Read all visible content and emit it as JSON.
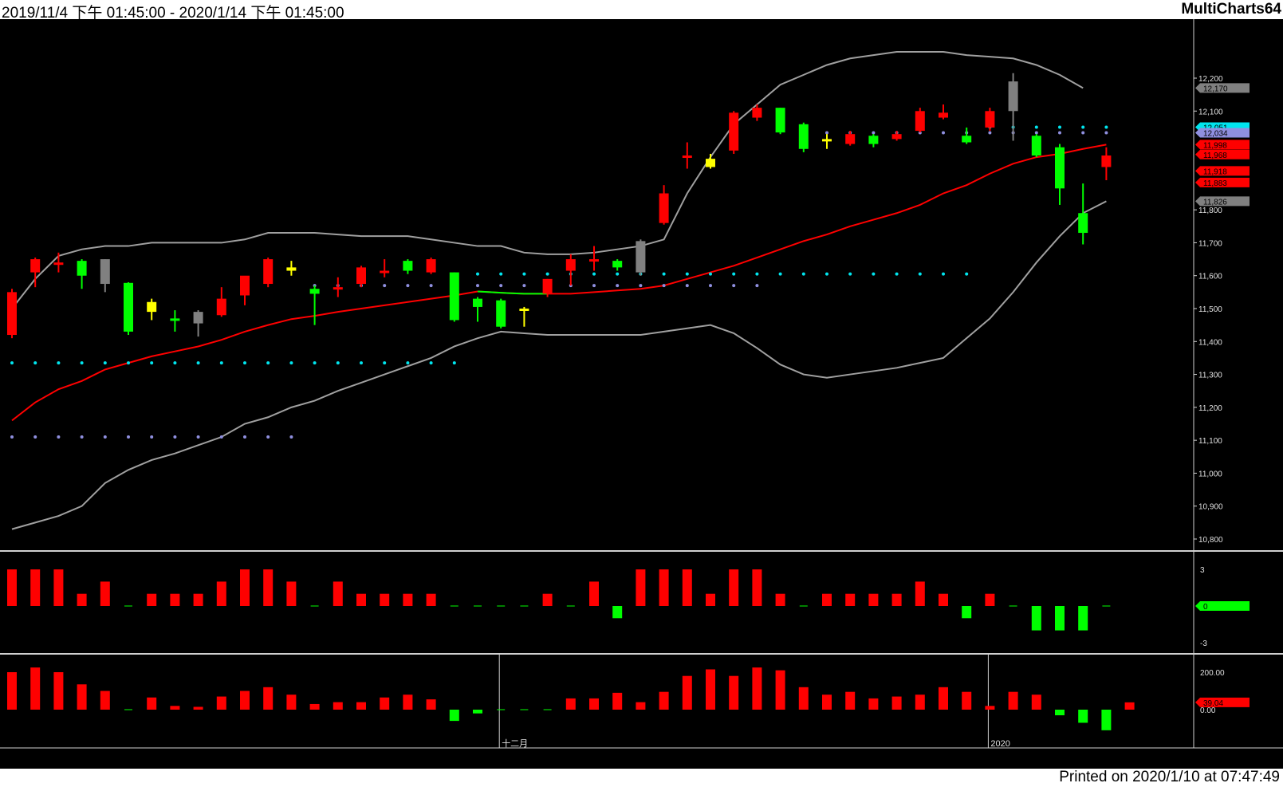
{
  "header": {
    "date_range": "2019/11/4 下午 01:45:00 - 2020/1/14 下午 01:45:00",
    "app_name": "MultiCharts64"
  },
  "footer": {
    "printed": "Printed on 2020/1/10 at 07:47:49"
  },
  "colors": {
    "background": "#000000",
    "up": "#ff0000",
    "down": "#00ff00",
    "doji": "#ffff00",
    "neutral": "#808080",
    "mid_band": "#ff0000",
    "outer_band": "#a0a0a0",
    "dots_cyan": "#00e5ee",
    "dots_lavender": "#8f8fdf"
  },
  "chart_data": [
    {
      "type": "candlestick",
      "panel": "price",
      "y_ticks": [
        "12,200",
        "12,100",
        "11,800",
        "11,700",
        "11,600",
        "11,500",
        "11,400",
        "11,300",
        "11,200",
        "11,100",
        "11,000",
        "10,900",
        "10,800"
      ],
      "y_tick_values": [
        12200,
        12100,
        11800,
        11700,
        11600,
        11500,
        11400,
        11300,
        11200,
        11100,
        11000,
        10900,
        10800
      ],
      "ylim": [
        10790,
        12290
      ],
      "x_labels": [
        {
          "index": 21,
          "label": "十二月"
        },
        {
          "index": 42,
          "label": "2020"
        }
      ],
      "value_tags": [
        {
          "label": "12,170",
          "value": 12170,
          "color": "#808080"
        },
        {
          "label": "12,051",
          "value": 12051,
          "color": "#00e5ee"
        },
        {
          "label": "12,034",
          "value": 12034,
          "color": "#8f8fdf"
        },
        {
          "label": "11,998",
          "value": 11998,
          "color": "#ff0000"
        },
        {
          "label": "11,968",
          "value": 11968,
          "color": "#ff0000"
        },
        {
          "label": "11,918",
          "value": 11918,
          "color": "#ff0000"
        },
        {
          "label": "11,883",
          "value": 11883,
          "color": "#ff0000"
        },
        {
          "label": "11,826",
          "value": 11826,
          "color": "#808080"
        }
      ],
      "candles": [
        {
          "o": 11420,
          "h": 11560,
          "l": 11410,
          "c": 11550,
          "color": "up"
        },
        {
          "o": 11610,
          "h": 11655,
          "l": 11565,
          "c": 11650,
          "color": "up"
        },
        {
          "o": 11640,
          "h": 11670,
          "l": 11610,
          "c": 11640,
          "color": "up"
        },
        {
          "o": 11645,
          "h": 11650,
          "l": 11560,
          "c": 11600,
          "color": "down"
        },
        {
          "o": 11650,
          "h": 11650,
          "l": 11550,
          "c": 11575,
          "color": "neutral"
        },
        {
          "o": 11578,
          "h": 11580,
          "l": 11420,
          "c": 11430,
          "color": "down"
        },
        {
          "o": 11490,
          "h": 11530,
          "l": 11465,
          "c": 11520,
          "color": "doji"
        },
        {
          "o": 11470,
          "h": 11495,
          "l": 11430,
          "c": 11470,
          "color": "down"
        },
        {
          "o": 11490,
          "h": 11495,
          "l": 11415,
          "c": 11455,
          "color": "neutral"
        },
        {
          "o": 11480,
          "h": 11565,
          "l": 11475,
          "c": 11530,
          "color": "up"
        },
        {
          "o": 11540,
          "h": 11590,
          "l": 11510,
          "c": 11600,
          "color": "up"
        },
        {
          "o": 11575,
          "h": 11655,
          "l": 11565,
          "c": 11650,
          "color": "up"
        },
        {
          "o": 11615,
          "h": 11645,
          "l": 11600,
          "c": 11625,
          "color": "doji"
        },
        {
          "o": 11560,
          "h": 11570,
          "l": 11450,
          "c": 11545,
          "color": "down"
        },
        {
          "o": 11560,
          "h": 11595,
          "l": 11535,
          "c": 11565,
          "color": "up"
        },
        {
          "o": 11575,
          "h": 11630,
          "l": 11565,
          "c": 11625,
          "color": "up"
        },
        {
          "o": 11615,
          "h": 11650,
          "l": 11595,
          "c": 11615,
          "color": "up"
        },
        {
          "o": 11645,
          "h": 11650,
          "l": 11605,
          "c": 11615,
          "color": "down"
        },
        {
          "o": 11610,
          "h": 11655,
          "l": 11605,
          "c": 11650,
          "color": "up"
        },
        {
          "o": 11610,
          "h": 11610,
          "l": 11460,
          "c": 11465,
          "color": "down"
        },
        {
          "o": 11530,
          "h": 11535,
          "l": 11460,
          "c": 11505,
          "color": "down"
        },
        {
          "o": 11525,
          "h": 11530,
          "l": 11440,
          "c": 11445,
          "color": "down"
        },
        {
          "o": 11500,
          "h": 11505,
          "l": 11445,
          "c": 11495,
          "color": "doji"
        },
        {
          "o": 11545,
          "h": 11590,
          "l": 11535,
          "c": 11590,
          "color": "up"
        },
        {
          "o": 11615,
          "h": 11665,
          "l": 11570,
          "c": 11650,
          "color": "up"
        },
        {
          "o": 11650,
          "h": 11690,
          "l": 11615,
          "c": 11650,
          "color": "up"
        },
        {
          "o": 11645,
          "h": 11650,
          "l": 11615,
          "c": 11625,
          "color": "down"
        },
        {
          "o": 11705,
          "h": 11710,
          "l": 11600,
          "c": 11610,
          "color": "neutral"
        },
        {
          "o": 11760,
          "h": 11875,
          "l": 11755,
          "c": 11850,
          "color": "up"
        },
        {
          "o": 11965,
          "h": 12005,
          "l": 11925,
          "c": 11965,
          "color": "up"
        },
        {
          "o": 11955,
          "h": 11970,
          "l": 11925,
          "c": 11930,
          "color": "doji"
        },
        {
          "o": 11980,
          "h": 12100,
          "l": 11970,
          "c": 12095,
          "color": "up"
        },
        {
          "o": 12080,
          "h": 12120,
          "l": 12070,
          "c": 12110,
          "color": "up"
        },
        {
          "o": 12110,
          "h": 12110,
          "l": 12030,
          "c": 12035,
          "color": "down"
        },
        {
          "o": 12060,
          "h": 12065,
          "l": 11975,
          "c": 11985,
          "color": "down"
        },
        {
          "o": 12015,
          "h": 12030,
          "l": 11985,
          "c": 12010,
          "color": "doji"
        },
        {
          "o": 12000,
          "h": 12040,
          "l": 11995,
          "c": 12030,
          "color": "up"
        },
        {
          "o": 12025,
          "h": 12030,
          "l": 11990,
          "c": 12000,
          "color": "down"
        },
        {
          "o": 12015,
          "h": 12040,
          "l": 12010,
          "c": 12030,
          "color": "up"
        },
        {
          "o": 12040,
          "h": 12110,
          "l": 12035,
          "c": 12100,
          "color": "up"
        },
        {
          "o": 12080,
          "h": 12120,
          "l": 12075,
          "c": 12095,
          "color": "up"
        },
        {
          "o": 12025,
          "h": 12050,
          "l": 12000,
          "c": 12005,
          "color": "down"
        },
        {
          "o": 12050,
          "h": 12110,
          "l": 12040,
          "c": 12100,
          "color": "up"
        },
        {
          "o": 12100,
          "h": 12215,
          "l": 12010,
          "c": 12190,
          "color": "neutral"
        },
        {
          "o": 12025,
          "h": 12030,
          "l": 11960,
          "c": 11965,
          "color": "down"
        },
        {
          "o": 11990,
          "h": 12000,
          "l": 11815,
          "c": 11865,
          "color": "down"
        },
        {
          "o": 11790,
          "h": 11880,
          "l": 11695,
          "c": 11730,
          "color": "down"
        },
        {
          "o": 11965,
          "h": 11990,
          "l": 11890,
          "c": 11930,
          "color": "up"
        }
      ],
      "mid_band": [
        11160,
        11185,
        11212,
        11240,
        11262,
        11280,
        11305,
        11325,
        11345,
        11362,
        11375,
        11388,
        11402,
        11420,
        11440,
        11458,
        11476,
        11490,
        11500,
        11512,
        11525,
        11540,
        11555,
        11565,
        11565,
        11560,
        11555,
        11555,
        11555,
        11560,
        11565,
        11570,
        11580,
        11595,
        11610,
        11620,
        11640,
        11660,
        11680,
        11700,
        11720,
        11740,
        11760,
        11780,
        11800,
        11830,
        11860,
        11890,
        11920,
        11945,
        11960,
        11980,
        12000,
        12010,
        12020,
        12035,
        12050,
        12065,
        12080,
        12100,
        12120,
        12140,
        12160,
        12180,
        12200,
        12220,
        12240,
        12260,
        12275,
        12290,
        12300,
        12315,
        12330,
        12345,
        12360,
        12380,
        12400,
        12420,
        12440,
        12460,
        12480,
        12500,
        12520,
        12540,
        12560,
        12580,
        12600,
        12620
      ],
      "mid_band_note": "",
      "mid_series": [
        11160,
        11215,
        11255,
        11280,
        11315,
        11335,
        11355,
        11370,
        11385,
        11405,
        11430,
        11450,
        11468,
        11478,
        11490,
        11500,
        11510,
        11520,
        11530,
        11540,
        11552,
        11548,
        11545,
        11545,
        11545,
        11550,
        11555,
        11560,
        11570,
        11590,
        11610,
        11630,
        11655,
        11680,
        11705,
        11725,
        11750,
        11770,
        11790,
        11815,
        11850,
        11875,
        11910,
        11940,
        11960,
        11970,
        11985,
        11998
      ],
      "upper_series": [
        11500,
        11590,
        11660,
        11680,
        11690,
        11690,
        11700,
        11700,
        11700,
        11700,
        11710,
        11730,
        11730,
        11730,
        11725,
        11720,
        11720,
        11720,
        11710,
        11700,
        11690,
        11690,
        11670,
        11665,
        11665,
        11670,
        11680,
        11690,
        11710,
        11850,
        11960,
        12060,
        12120,
        12180,
        12210,
        12240,
        12260,
        12270,
        12280,
        12280,
        12280,
        12270,
        12265,
        12260,
        12240,
        12210,
        12170
      ],
      "lower_series": [
        10830,
        10850,
        10870,
        10900,
        10970,
        11010,
        11040,
        11060,
        11085,
        11110,
        11150,
        11170,
        11200,
        11220,
        11250,
        11275,
        11300,
        11325,
        11350,
        11385,
        11410,
        11430,
        11425,
        11420,
        11420,
        11420,
        11420,
        11420,
        11430,
        11440,
        11450,
        11425,
        11380,
        11330,
        11300,
        11290,
        11300,
        11310,
        11320,
        11335,
        11350,
        11410,
        11470,
        11550,
        11640,
        11720,
        11790,
        11826
      ],
      "mid_green_range": [
        20,
        23
      ],
      "dots_cyan_upper": {
        "value": 11605,
        "from": 20,
        "to": 41
      },
      "dots_lavender_upper": {
        "value": 11570,
        "from": 13,
        "to": 32
      },
      "dots_cyan_lower": {
        "value": 11335,
        "from": 0,
        "to": 19
      },
      "dots_lavender_lower": {
        "value": 11110,
        "from": 0,
        "to": 12
      },
      "dots_cyan_top": {
        "value": 12051,
        "from": 42,
        "to": 47
      },
      "dots_lavender_top": {
        "value": 12034,
        "from": 34,
        "to": 47
      }
    },
    {
      "type": "bar",
      "panel": "oscillator1",
      "y_ticks": [
        "3",
        "0",
        "-3"
      ],
      "y_tick_values": [
        3,
        0,
        -3
      ],
      "ylim": [
        -3.6,
        3.6
      ],
      "value_tags": [
        {
          "label": "0",
          "value": 0,
          "color": "#00ff00"
        }
      ],
      "values": [
        3,
        3,
        3,
        1,
        2,
        0,
        1,
        1,
        1,
        2,
        3,
        3,
        2,
        0,
        2,
        1,
        1,
        1,
        1,
        0,
        0,
        0,
        0,
        1,
        0,
        2,
        -1,
        3,
        3,
        3,
        1,
        3,
        3,
        1,
        0,
        1,
        1,
        1,
        1,
        2,
        1,
        -1,
        1,
        0,
        -2,
        -2,
        -2,
        0
      ],
      "zero_color_note": ""
    },
    {
      "type": "bar",
      "panel": "oscillator2",
      "y_ticks": [
        "200.00",
        "0.00"
      ],
      "y_tick_values": [
        200,
        0
      ],
      "ylim": [
        -120,
        250
      ],
      "value_tags": [
        {
          "label": "39.04",
          "value": 39.04,
          "color": "#ff0000"
        }
      ],
      "values": [
        200,
        225,
        200,
        135,
        100,
        0,
        65,
        20,
        15,
        70,
        100,
        120,
        80,
        30,
        40,
        40,
        65,
        80,
        55,
        -60,
        -20,
        0,
        0,
        0,
        60,
        60,
        90,
        40,
        95,
        180,
        215,
        180,
        225,
        210,
        120,
        80,
        95,
        60,
        70,
        80,
        120,
        95,
        20,
        95,
        80,
        -30,
        -70,
        -110,
        39.04
      ],
      "values_note": ""
    }
  ]
}
